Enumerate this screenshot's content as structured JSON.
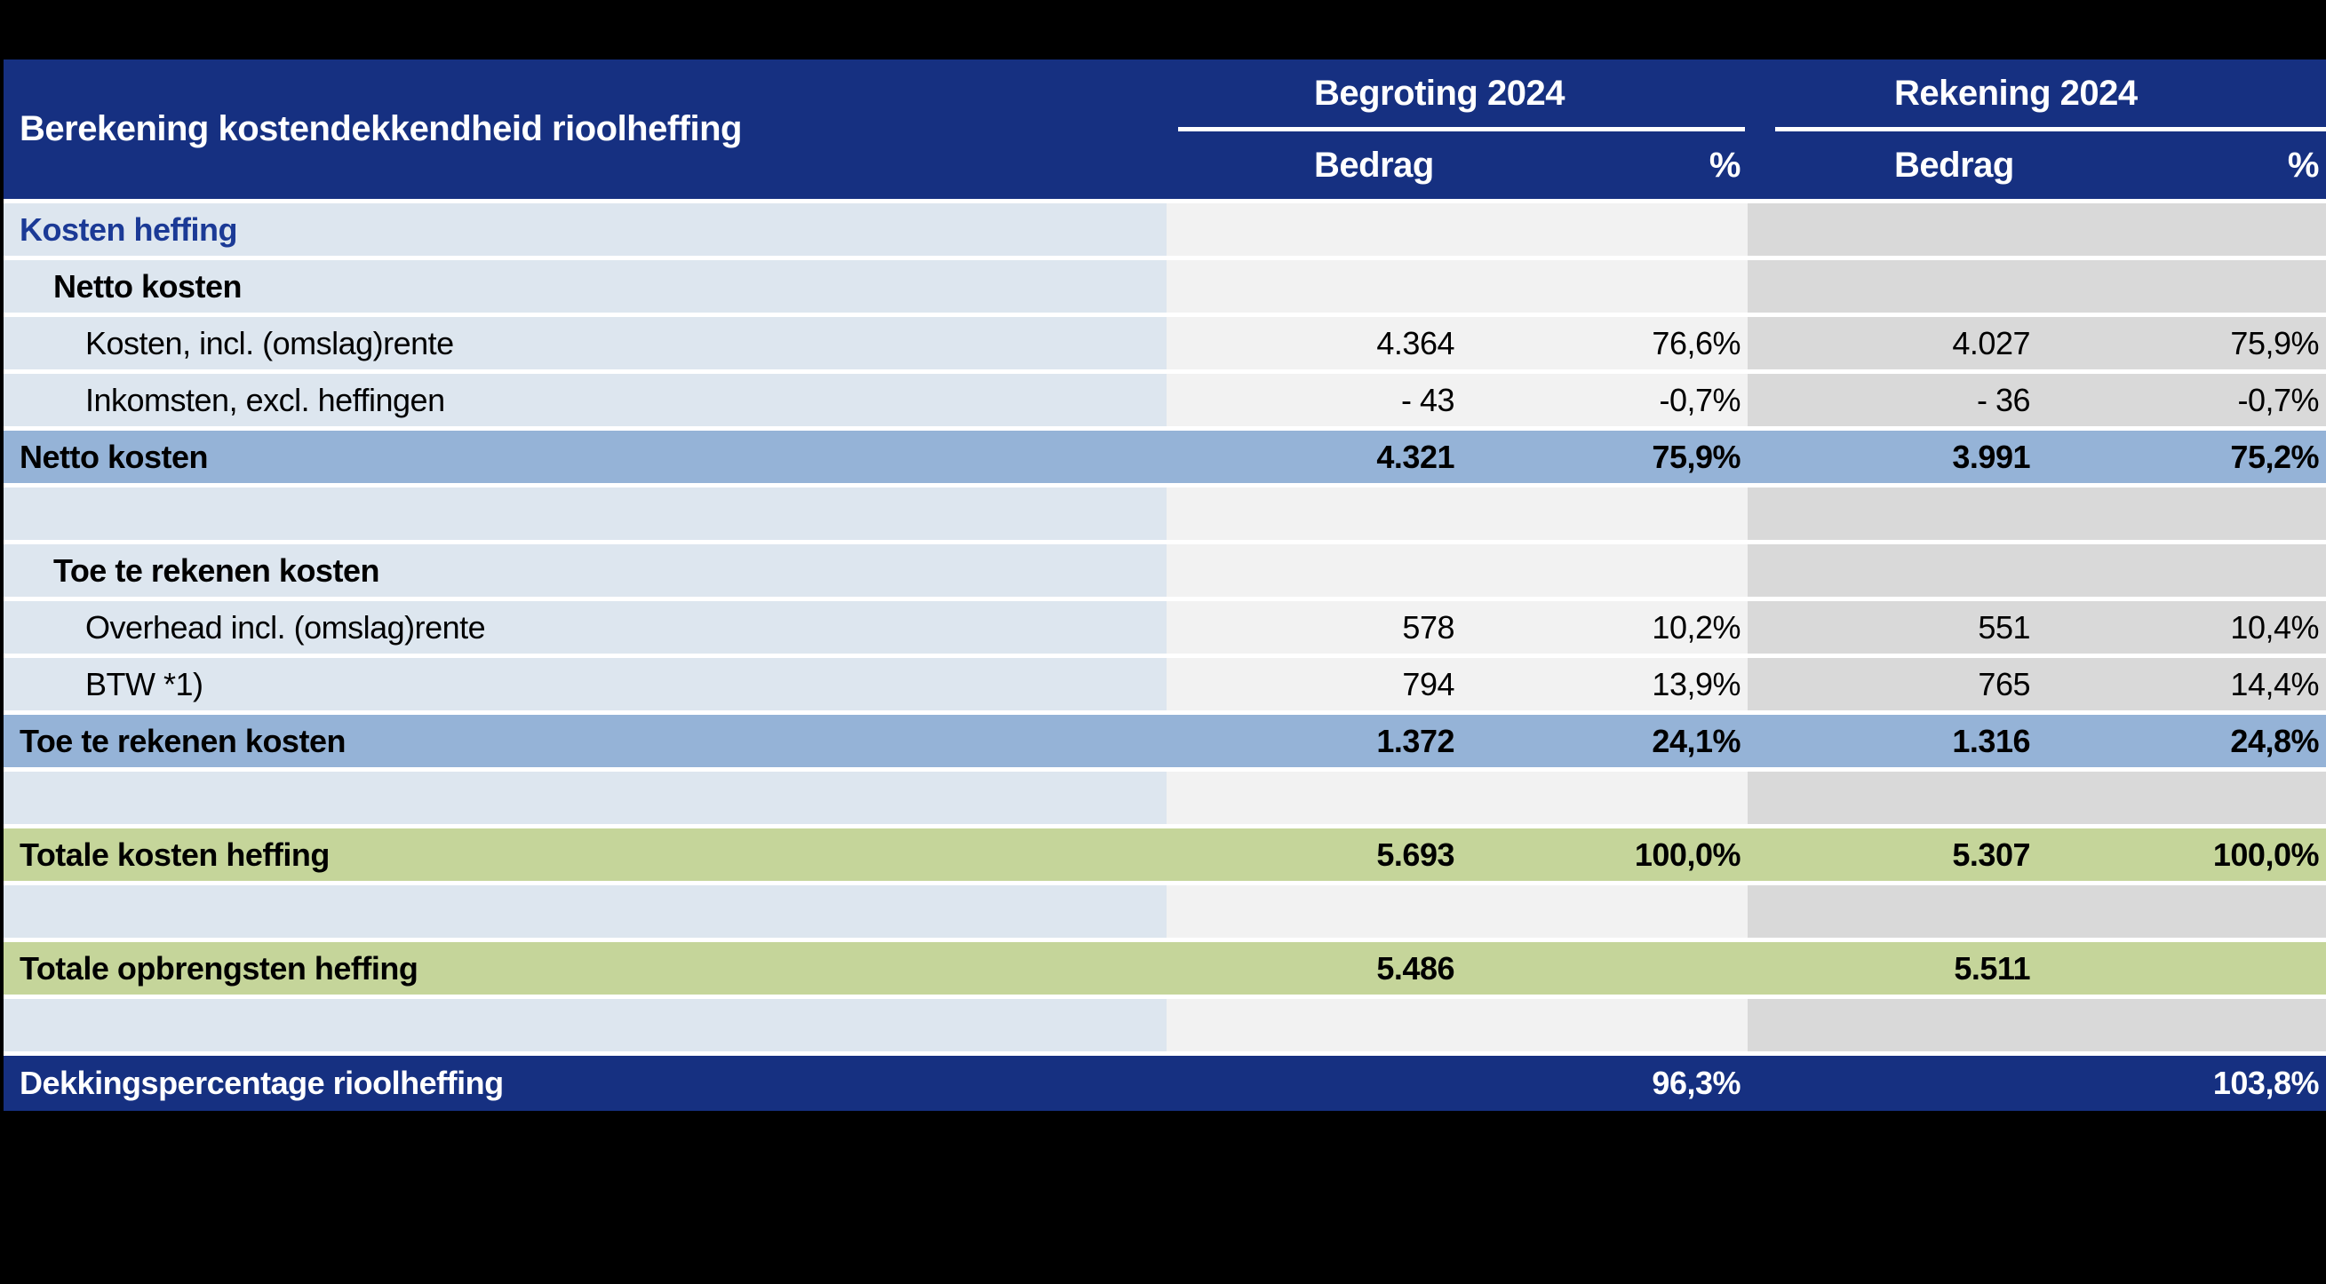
{
  "table": {
    "title": "Berekening kostendekkendheid rioolheffing",
    "groups": [
      {
        "label": "Begroting 2024",
        "amount_label": "Bedrag",
        "percent_label": "%"
      },
      {
        "label": "Rekening 2024",
        "amount_label": "Bedrag",
        "percent_label": "%"
      }
    ],
    "rows": [
      {
        "label": "Kosten heffing",
        "b1": "",
        "p1": "",
        "b2": "",
        "p2": ""
      },
      {
        "label": "Netto kosten",
        "b1": "",
        "p1": "",
        "b2": "",
        "p2": ""
      },
      {
        "label": "Kosten, incl. (omslag)rente",
        "b1": "4.364",
        "p1": "76,6%",
        "b2": "4.027",
        "p2": "75,9%"
      },
      {
        "label": "Inkomsten, excl. heffingen",
        "b1": "- 43",
        "p1": "-0,7%",
        "b2": "- 36",
        "p2": "-0,7%"
      },
      {
        "label": "Netto kosten",
        "b1": "4.321",
        "p1": "75,9%",
        "b2": "3.991",
        "p2": "75,2%"
      },
      {
        "label": "",
        "b1": "",
        "p1": "",
        "b2": "",
        "p2": ""
      },
      {
        "label": "Toe te rekenen kosten",
        "b1": "",
        "p1": "",
        "b2": "",
        "p2": ""
      },
      {
        "label": "Overhead incl. (omslag)rente",
        "b1": "578",
        "p1": "10,2%",
        "b2": "551",
        "p2": "10,4%"
      },
      {
        "label": "BTW *1)",
        "b1": "794",
        "p1": "13,9%",
        "b2": "765",
        "p2": "14,4%"
      },
      {
        "label": "Toe te rekenen kosten",
        "b1": "1.372",
        "p1": "24,1%",
        "b2": "1.316",
        "p2": "24,8%"
      },
      {
        "label": "",
        "b1": "",
        "p1": "",
        "b2": "",
        "p2": ""
      },
      {
        "label": "Totale kosten heffing",
        "b1": "5.693",
        "p1": "100,0%",
        "b2": "5.307",
        "p2": "100,0%"
      },
      {
        "label": "",
        "b1": "",
        "p1": "",
        "b2": "",
        "p2": ""
      },
      {
        "label": "Totale opbrengsten heffing",
        "b1": "5.486",
        "p1": "",
        "b2": "5.511",
        "p2": ""
      },
      {
        "label": "",
        "b1": "",
        "p1": "",
        "b2": "",
        "p2": ""
      },
      {
        "label": "Dekkingspercentage rioolheffing",
        "b1": "",
        "p1": "96,3%",
        "b2": "",
        "p2": "103,8%"
      }
    ]
  },
  "colors": {
    "header_navy": "#163081",
    "section_label_blue": "#1b3a96",
    "label_column_blue": "#dde6ef",
    "begroting_column_gray": "#f2f2f2",
    "rekening_column_gray": "#d9d9d9",
    "subtotal_blue": "#95b3d7",
    "total_green": "#c5d59a",
    "separator_white": "#ffffff",
    "page_background": "#000000"
  }
}
